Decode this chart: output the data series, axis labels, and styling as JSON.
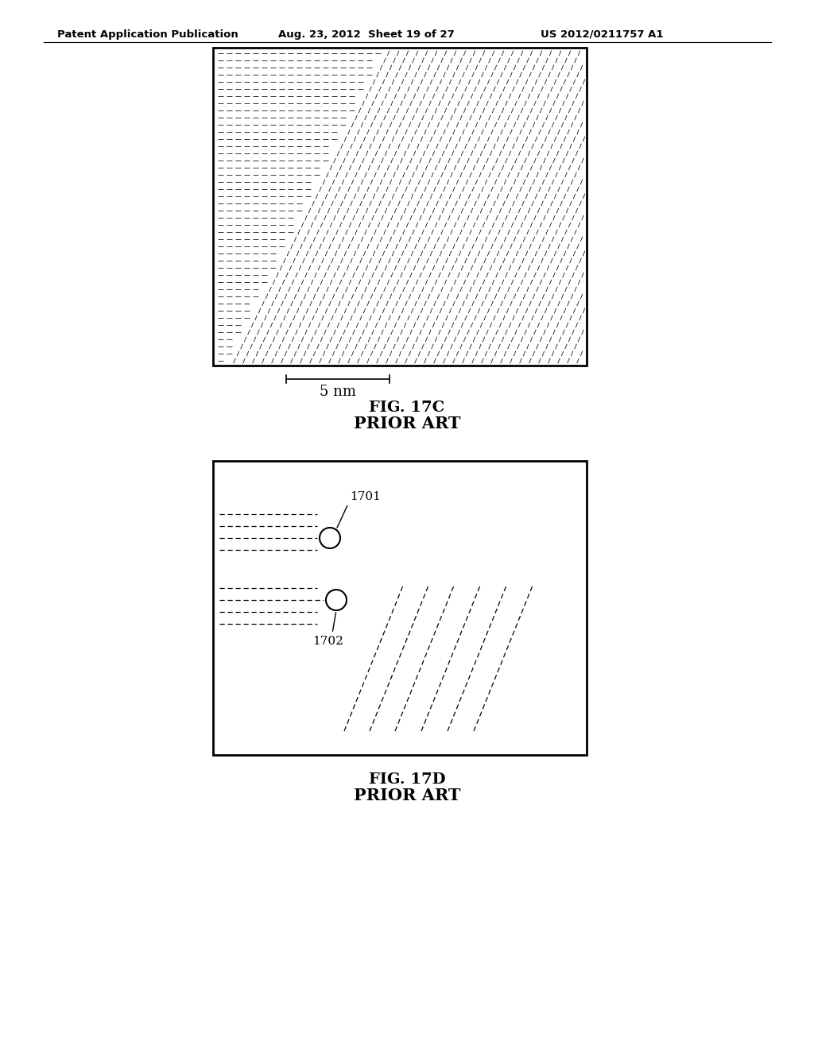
{
  "header_left": "Patent Application Publication",
  "header_mid": "Aug. 23, 2012  Sheet 19 of 27",
  "header_right": "US 2012/0211757 A1",
  "fig17c_title": "FIG. 17C",
  "fig17c_subtitle": "PRIOR ART",
  "fig17c_scalebar": "5 nm",
  "fig17d_title": "FIG. 17D",
  "fig17d_subtitle": "PRIOR ART",
  "label_1701": "1701",
  "label_1702": "1702",
  "bg_color": "#ffffff",
  "line_color": "#000000"
}
